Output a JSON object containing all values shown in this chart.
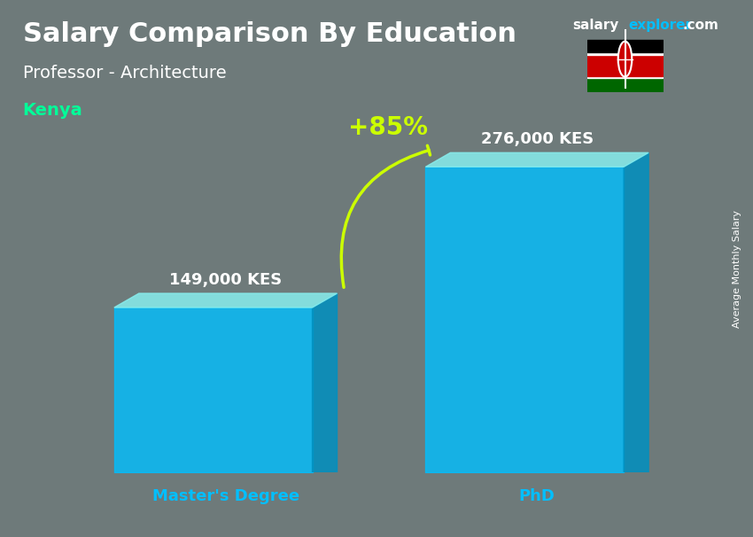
{
  "title_main": "Salary Comparison By Education",
  "title_sub": "Professor - Architecture",
  "title_country": "Kenya",
  "watermark": "salaryexplorer.com",
  "ylabel_rotated": "Average Monthly Salary",
  "categories": [
    "Master's Degree",
    "PhD"
  ],
  "values": [
    149000,
    276000
  ],
  "value_labels": [
    "149,000 KES",
    "276,000 KES"
  ],
  "pct_label": "+85%",
  "bar_color_main": "#00BFFF",
  "bar_color_top": "#87EEEE",
  "bar_color_side": "#0090C0",
  "bar_width": 0.28,
  "bg_color": "#7a8a8a",
  "title_color": "#ffffff",
  "subtitle_color": "#ffffff",
  "country_color": "#00FF99",
  "value_label_color": "#ffffff",
  "pct_color": "#CCFF00",
  "arrow_color": "#CCFF00",
  "cat_label_color": "#00BFFF",
  "watermark_salary_color": "#ffffff",
  "watermark_explorer_color": "#00BFFF",
  "ylim_max": 320000,
  "x_positions": [
    0.28,
    0.72
  ]
}
